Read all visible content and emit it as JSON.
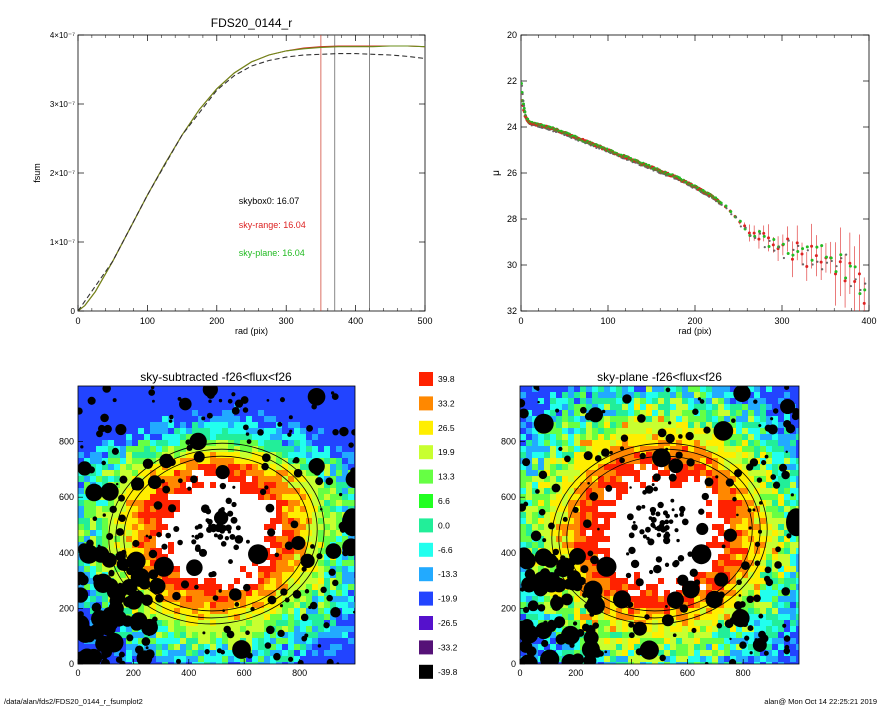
{
  "footer": {
    "left_path": "/data/alan/fds2/FDS20_0144_r_fsumplot2",
    "right_stamp": "alan@  Mon Oct 14 22:25:21 2019"
  },
  "chart_data": [
    {
      "id": "fsum",
      "type": "line",
      "title": "FDS20_0144_r",
      "xlabel": "rad (pix)",
      "ylabel": "fsum",
      "xlim": [
        0,
        500
      ],
      "ylim": [
        0,
        4e-07
      ],
      "xticks": [
        "0",
        "100",
        "200",
        "300",
        "400",
        "500"
      ],
      "yticks": [
        {
          "value": 0,
          "label": "0"
        },
        {
          "value": 1e-07,
          "label": "1×10⁻⁷"
        },
        {
          "value": 2e-07,
          "label": "2×10⁻⁷"
        },
        {
          "value": 3e-07,
          "label": "3×10⁻⁷"
        },
        {
          "value": 4e-07,
          "label": "4×10⁻⁷"
        }
      ],
      "series": [
        {
          "style": "solid",
          "color": "#cc3322",
          "x": [
            0,
            10,
            25,
            50,
            75,
            100,
            125,
            150,
            175,
            200,
            225,
            250,
            275,
            300,
            325,
            350,
            375,
            400,
            425,
            450,
            475,
            500
          ],
          "y": [
            0,
            8e-09,
            2.8e-08,
            7.2e-08,
            1.2e-07,
            1.68e-07,
            2.13e-07,
            2.55e-07,
            2.92e-07,
            3.22e-07,
            3.45e-07,
            3.61e-07,
            3.71e-07,
            3.77e-07,
            3.81e-07,
            3.83e-07,
            3.84e-07,
            3.84e-07,
            3.84e-07,
            3.84e-07,
            3.84e-07,
            3.83e-07
          ]
        },
        {
          "style": "solid",
          "color": "#6a8c1a",
          "x": [
            0,
            10,
            25,
            50,
            75,
            100,
            125,
            150,
            175,
            200,
            225,
            250,
            275,
            300,
            325,
            350,
            375,
            400,
            425,
            450,
            475,
            500
          ],
          "y": [
            0,
            8e-09,
            2.8e-08,
            7.2e-08,
            1.2e-07,
            1.68e-07,
            2.13e-07,
            2.55e-07,
            2.92e-07,
            3.22e-07,
            3.45e-07,
            3.61e-07,
            3.71e-07,
            3.77e-07,
            3.8e-07,
            3.82e-07,
            3.83e-07,
            3.83e-07,
            3.83e-07,
            3.84e-07,
            3.84e-07,
            3.83e-07
          ]
        },
        {
          "style": "dashed",
          "color": "#333333",
          "x": [
            0,
            50,
            100,
            150,
            200,
            225,
            250,
            275,
            300,
            325,
            350,
            375,
            400,
            425,
            450,
            475,
            500
          ],
          "y": [
            0,
            7.2e-08,
            1.68e-07,
            2.55e-07,
            3.2e-07,
            3.41e-07,
            3.55e-07,
            3.63e-07,
            3.68e-07,
            3.71e-07,
            3.72e-07,
            3.73e-07,
            3.73e-07,
            3.72e-07,
            3.71e-07,
            3.69e-07,
            3.66e-07
          ]
        }
      ],
      "vlines": [
        {
          "x": 350,
          "color": "#cc3322"
        },
        {
          "x": 370,
          "color": "#555555"
        },
        {
          "x": 420,
          "color": "#555555"
        }
      ],
      "annotations": [
        {
          "text": "skybox0: 16.07",
          "color": "#000000",
          "x": 210,
          "y": 1.55e-07
        },
        {
          "text": "sky-range: 16.04",
          "color": "#dd2222",
          "x": 210,
          "y": 1.2e-07
        },
        {
          "text": "sky-plane: 16.04",
          "color": "#22bb22",
          "x": 210,
          "y": 8e-08
        }
      ]
    },
    {
      "id": "mu",
      "type": "scatter",
      "title": "",
      "xlabel": "rad (pix)",
      "ylabel": "μ",
      "xlim": [
        0,
        400
      ],
      "ylim": [
        32,
        20
      ],
      "xticks": [
        "0",
        "100",
        "200",
        "300",
        "400"
      ],
      "yticks": [
        "20",
        "22",
        "24",
        "26",
        "28",
        "30",
        "32"
      ],
      "profile": {
        "x": [
          0,
          2,
          4,
          6,
          10,
          20,
          40,
          60,
          80,
          100,
          120,
          140,
          160,
          180,
          200,
          220,
          230,
          240,
          250,
          260,
          270,
          280,
          290,
          300,
          310,
          320,
          330,
          340,
          350,
          360,
          370,
          380,
          390,
          400
        ],
        "y": [
          21.9,
          22.8,
          23.3,
          23.6,
          23.8,
          23.9,
          24.1,
          24.4,
          24.7,
          25.0,
          25.3,
          25.6,
          25.9,
          26.2,
          26.6,
          27.0,
          27.3,
          27.6,
          28.1,
          28.5,
          28.7,
          28.9,
          29.0,
          29.2,
          29.3,
          29.5,
          29.6,
          29.8,
          29.8,
          30.0,
          30.2,
          30.4,
          30.7,
          31.0
        ]
      },
      "series": [
        {
          "name": "",
          "color": "#dd2222"
        },
        {
          "name": "",
          "color": "#22bb22"
        },
        {
          "name": "",
          "color": "#666666"
        }
      ]
    },
    {
      "id": "img1",
      "type": "heatmap",
      "title": "sky-subtracted -f26<flux<f26",
      "xlim": [
        0,
        1000
      ],
      "ylim": [
        0,
        1000
      ],
      "xticks": [
        "0",
        "200",
        "400",
        "600",
        "800"
      ],
      "yticks": [
        "0",
        "200",
        "400",
        "600",
        "800"
      ],
      "center": [
        500,
        480
      ]
    },
    {
      "id": "img2",
      "type": "heatmap",
      "title": "sky-plane -f26<flux<f26",
      "xlim": [
        0,
        1000
      ],
      "ylim": [
        0,
        1000
      ],
      "xticks": [
        "0",
        "200",
        "400",
        "600",
        "800"
      ],
      "yticks": [
        "0",
        "200",
        "400",
        "600",
        "800"
      ],
      "center": [
        500,
        480
      ]
    },
    {
      "id": "colorbar",
      "type": "table",
      "labels": [
        "39.8",
        "33.2",
        "26.5",
        "19.9",
        "13.3",
        "6.6",
        "0.0",
        "-6.6",
        "-13.3",
        "-19.9",
        "-26.5",
        "-33.2",
        "-39.8"
      ],
      "colors": [
        "#ff2200",
        "#ff8800",
        "#ffee00",
        "#c8ff30",
        "#66ff44",
        "#22ff22",
        "#22ee99",
        "#22ffee",
        "#22aaff",
        "#2244ff",
        "#5511cc",
        "#551177",
        "#000000"
      ]
    }
  ]
}
